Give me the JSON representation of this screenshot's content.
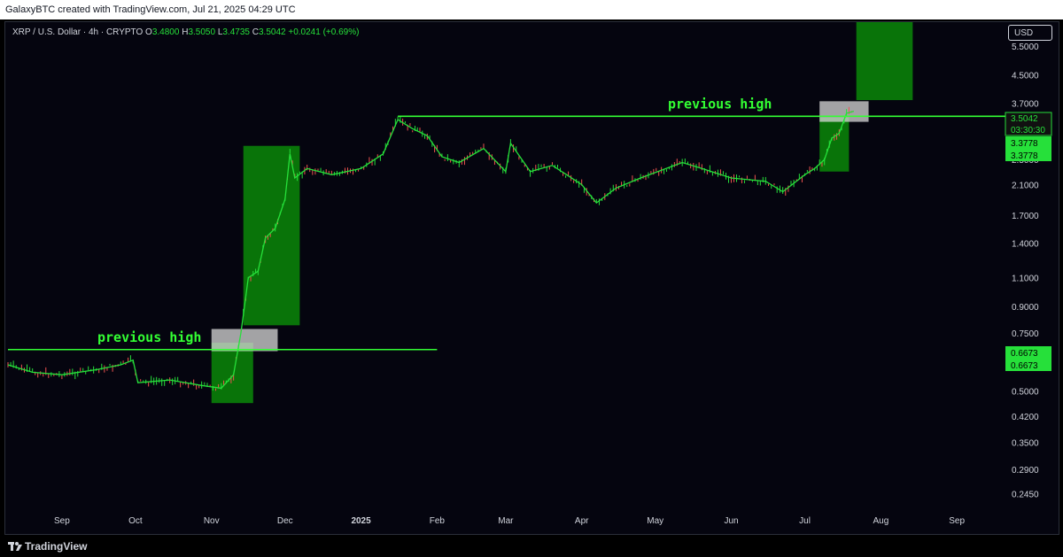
{
  "header": {
    "caption": "GalaxyBTC created with TradingView.com, Jul 21, 2025 04:29 UTC"
  },
  "legend": {
    "symbol": "XRP / U.S. Dollar · 4h · CRYPTO",
    "open_label": "O",
    "open": "3.4800",
    "high_label": "H",
    "high": "3.5050",
    "low_label": "L",
    "low": "3.4735",
    "close_label": "C",
    "close": "3.5042",
    "change": "+0.0241 (+0.69%)"
  },
  "currency_button": "USD",
  "price_tags": {
    "last_price": "3.5042",
    "countdown": "03:30:30",
    "level_a1": "3.3778",
    "level_a2": "3.3778",
    "level_b1": "0.6673",
    "level_b2": "0.6673"
  },
  "annotations": {
    "label_1": "previous high",
    "label_2": "previous high"
  },
  "footer": {
    "brand": "TradingView"
  },
  "colors": {
    "up": "#26e03a",
    "down": "#ef5350",
    "line": "#33ff33",
    "box_green": "#0a7a0a",
    "box_grey": "#d8d8d8",
    "background": "#05050f"
  },
  "chart_data": {
    "type": "line",
    "y_scale": "log",
    "ylim": [
      0.22,
      6.5
    ],
    "y_ticks": [
      "5.5000",
      "4.5000",
      "3.7000",
      "2.5000",
      "2.1000",
      "1.7000",
      "1.4000",
      "1.1000",
      "0.9000",
      "0.7500",
      "0.5000",
      "0.4200",
      "0.3500",
      "0.2900",
      "0.2450"
    ],
    "x_ticks": [
      "Sep",
      "Oct",
      "Nov",
      "Dec",
      "2025",
      "Feb",
      "Mar",
      "Apr",
      "May",
      "Jun",
      "Jul",
      "Aug",
      "Sep"
    ],
    "x": [
      "2024-08-10",
      "2024-08-20",
      "2024-09-01",
      "2024-09-15",
      "2024-09-25",
      "2024-09-30",
      "2024-10-02",
      "2024-10-15",
      "2024-10-28",
      "2024-11-05",
      "2024-11-10",
      "2024-11-13",
      "2024-11-16",
      "2024-11-20",
      "2024-11-23",
      "2024-11-27",
      "2024-12-01",
      "2024-12-03",
      "2024-12-05",
      "2024-12-10",
      "2024-12-20",
      "2025-01-01",
      "2025-01-10",
      "2025-01-16",
      "2025-01-22",
      "2025-01-28",
      "2025-02-03",
      "2025-02-10",
      "2025-02-20",
      "2025-03-01",
      "2025-03-03",
      "2025-03-11",
      "2025-03-20",
      "2025-04-01",
      "2025-04-07",
      "2025-04-15",
      "2025-04-25",
      "2025-05-12",
      "2025-05-20",
      "2025-06-01",
      "2025-06-15",
      "2025-06-22",
      "2025-07-01",
      "2025-07-05",
      "2025-07-09",
      "2025-07-12",
      "2025-07-15",
      "2025-07-18",
      "2025-07-21"
    ],
    "series": [
      {
        "values": [
          0.6,
          0.57,
          0.56,
          0.58,
          0.6,
          0.62,
          0.53,
          0.54,
          0.52,
          0.51,
          0.56,
          0.75,
          1.1,
          1.15,
          1.45,
          1.55,
          1.9,
          2.6,
          2.2,
          2.35,
          2.25,
          2.35,
          2.6,
          3.3,
          3.1,
          2.95,
          2.55,
          2.45,
          2.7,
          2.3,
          2.8,
          2.3,
          2.4,
          2.1,
          1.85,
          2.05,
          2.2,
          2.45,
          2.35,
          2.2,
          2.15,
          2.0,
          2.25,
          2.35,
          2.5,
          2.9,
          3.0,
          3.45,
          3.5
        ]
      }
    ],
    "reference_lines": [
      {
        "label": "previous high",
        "y": 0.6673,
        "x_from": "2024-08-10",
        "x_to": "2025-02-01"
      },
      {
        "label": "previous high",
        "y": 3.3778,
        "x_from": "2025-01-16",
        "x_to": "2025-08-31"
      }
    ],
    "boxes": [
      {
        "kind": "green",
        "x_from": "2024-11-01",
        "x_to": "2024-11-18",
        "y_from": 0.46,
        "y_to": 0.7
      },
      {
        "kind": "grey",
        "x_from": "2024-11-01",
        "x_to": "2024-11-28",
        "y_from": 0.66,
        "y_to": 0.77
      },
      {
        "kind": "green",
        "x_from": "2024-11-14",
        "x_to": "2024-12-07",
        "y_from": 0.79,
        "y_to": 2.75
      },
      {
        "kind": "green",
        "x_from": "2025-07-07",
        "x_to": "2025-07-19",
        "y_from": 2.3,
        "y_to": 3.35
      },
      {
        "kind": "grey",
        "x_from": "2025-07-07",
        "x_to": "2025-07-27",
        "y_from": 3.25,
        "y_to": 3.75
      },
      {
        "kind": "green",
        "x_from": "2025-07-22",
        "x_to": "2025-08-14",
        "y_from": 3.78,
        "y_to": 6.5
      }
    ]
  }
}
